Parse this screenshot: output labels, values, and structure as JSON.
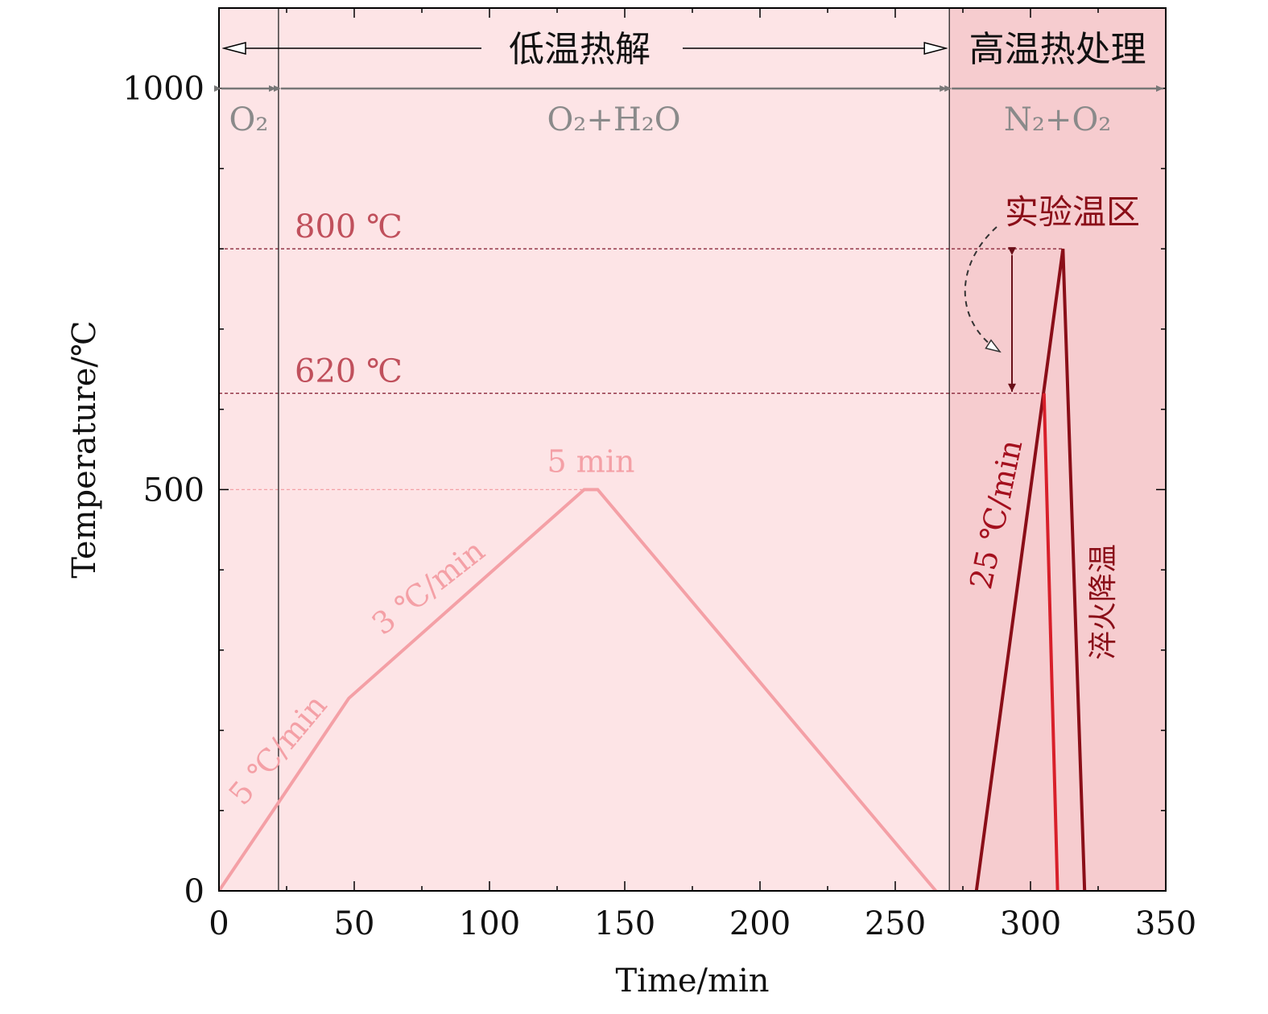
{
  "chart_data": {
    "type": "line",
    "xlabel": "Time/min",
    "ylabel": "Temperature/℃",
    "xlim": [
      0,
      350
    ],
    "ylim": [
      0,
      1100
    ],
    "x_ticks": [
      "0",
      "50",
      "100",
      "150",
      "200",
      "250",
      "300",
      "350"
    ],
    "y_ticks": [
      "0",
      "500",
      "1000"
    ],
    "grid": false,
    "regions": [
      {
        "name": "低温热解",
        "x": [
          0,
          270
        ],
        "color": "#fde4e6"
      },
      {
        "name": "高温热处理",
        "x": [
          270,
          350
        ],
        "color": "#f6cccf"
      }
    ],
    "atmospheres": [
      {
        "label": "O₂",
        "x": [
          0,
          22
        ]
      },
      {
        "label": "O₂+H₂O",
        "x": [
          22,
          270
        ]
      },
      {
        "label": "N₂+O₂",
        "x": [
          270,
          350
        ]
      }
    ],
    "reference_lines": [
      {
        "label": "800 ℃",
        "y": 800,
        "x_end": 312,
        "color": "#8a2a3c"
      },
      {
        "label": "620 ℃",
        "y": 620,
        "x_end": 305,
        "color": "#8a2a3c"
      },
      {
        "label": "",
        "y": 500,
        "x_end": 135,
        "color": "#f4a0a6"
      }
    ],
    "series": [
      {
        "name": "",
        "color": "#f4a0a6",
        "x": [
          0,
          48,
          135,
          140,
          265
        ],
        "y": [
          0,
          240,
          500,
          500,
          0
        ]
      },
      {
        "name": "",
        "color": "#8a0e18",
        "x": [
          280,
          312,
          320
        ],
        "y": [
          0,
          800,
          0
        ]
      },
      {
        "name": "",
        "color": "#d81f2a",
        "x": [
          305,
          310
        ],
        "y": [
          620,
          0
        ]
      }
    ],
    "annotations": {
      "low_temp": "低温热解",
      "high_temp": "高温热处理",
      "rate_5": "5 ℃/min",
      "rate_3": "3 ℃/min",
      "hold": "5 min",
      "rate_25": "25 ℃/min",
      "quench": "淬火降温",
      "exp_zone": "实验温区"
    }
  }
}
